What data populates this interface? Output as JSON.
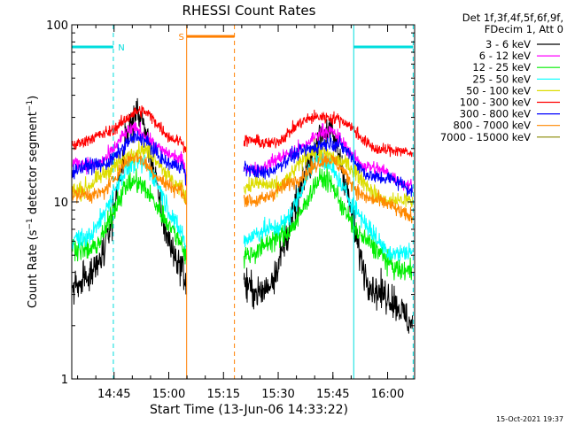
{
  "chart_data": {
    "type": "line",
    "title": "RHESSI Count Rates",
    "xlabel": "Start Time (13-Jun-06 14:33:22)",
    "ylabel": "Count Rate (s⁻¹ detector segment⁻¹)",
    "ylabel_main": "Count Rate (s",
    "ylabel_mid": " detector segment",
    "ylabel_end": ")",
    "ylabel_sup": "−1",
    "yscale": "log",
    "ylim": [
      1,
      100
    ],
    "xlim_minutes": [
      0,
      94
    ],
    "x_ticks": [
      {
        "label": "14:45",
        "minutes": 11.6
      },
      {
        "label": "15:00",
        "minutes": 26.6
      },
      {
        "label": "15:15",
        "minutes": 41.6
      },
      {
        "label": "15:30",
        "minutes": 56.6
      },
      {
        "label": "15:45",
        "minutes": 71.6
      },
      {
        "label": "16:00",
        "minutes": 86.6
      }
    ],
    "y_ticks": [
      {
        "label": "1",
        "value": 1
      },
      {
        "label": "10",
        "value": 10
      },
      {
        "label": "100",
        "value": 100
      }
    ],
    "gaps_minutes": [
      [
        31.5,
        47.2
      ]
    ],
    "legend": {
      "position": "top-right",
      "header_lines": [
        "Det 1f,3f,4f,5f,6f,9f,",
        "FDecim 1, Att 0"
      ]
    },
    "series": [
      {
        "name": "3 - 6 keV",
        "color": "#000000",
        "base": 3.2,
        "amp": 0.95,
        "noise": 0.07,
        "endfall": 0.45
      },
      {
        "name": "6 - 12 keV",
        "color": "#ff00ff",
        "base": 15.8,
        "amp": 0.2,
        "noise": 0.03,
        "endfall": 0.25
      },
      {
        "name": "12 - 25 keV",
        "color": "#00ee00",
        "base": 5.3,
        "amp": 0.4,
        "noise": 0.045,
        "endfall": 0.3
      },
      {
        "name": "25 - 50 keV",
        "color": "#00ffff",
        "base": 6.3,
        "amp": 0.45,
        "noise": 0.04,
        "endfall": 0.28
      },
      {
        "name": "50 - 100 keV",
        "color": "#dddd00",
        "base": 12.0,
        "amp": 0.22,
        "noise": 0.035,
        "endfall": 0.28
      },
      {
        "name": "100 - 300 keV",
        "color": "#ff0000",
        "base": 21.5,
        "amp": 0.17,
        "noise": 0.025,
        "endfall": 0.2
      },
      {
        "name": "300 - 800 keV",
        "color": "#0000ff",
        "base": 15.0,
        "amp": 0.17,
        "noise": 0.03,
        "endfall": 0.28
      },
      {
        "name": "800 - 7000 keV",
        "color": "#ff8800",
        "base": 10.5,
        "amp": 0.22,
        "noise": 0.03,
        "endfall": 0.25
      },
      {
        "name": "7000 - 15000 keV",
        "color": "#888800",
        "base": 0,
        "amp": 0,
        "noise": 0,
        "endfall": 0
      }
    ],
    "flags": [
      {
        "name": "N",
        "color": "#00dddd",
        "bars": [
          [
            0,
            11.4
          ],
          [
            77.3,
            93.6
          ]
        ],
        "starts_minutes": [
          0,
          77.3
        ],
        "ends_minutes": [
          11.4,
          93.6
        ],
        "y_value": 75
      },
      {
        "name": "S",
        "color": "#ff7f00",
        "bars": [
          [
            31.5,
            44.6
          ]
        ],
        "starts_minutes": [
          31.5
        ],
        "ends_minutes": [
          44.6
        ],
        "y_value": 86
      }
    ]
  },
  "footer": {
    "timestamp": "15-Oct-2021 19:37"
  }
}
